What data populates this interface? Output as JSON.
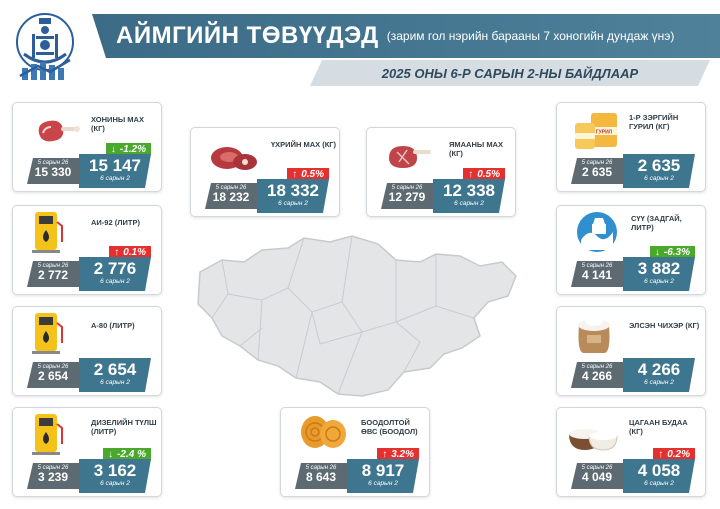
{
  "header": {
    "title": "АЙМГИЙН ТӨВҮҮДЭД",
    "subtitle": "(зарим гол нэрийн барааны 7 хоногийн дундаж үнэ)",
    "date_label": "2025 ОНЫ 6-Р САРЫН 2-НЫ БАЙДЛААР"
  },
  "colors": {
    "banner": "#3b6b86",
    "current_box": "#3e7690",
    "previous_box": "#5d6a72",
    "increase": "#e53030",
    "decrease": "#4aa82c"
  },
  "chart_data": {
    "type": "table",
    "columns": [
      "product",
      "previous",
      "current",
      "change_pct"
    ],
    "prev_date_label": "5 сарын 26",
    "cur_date_label": "6 сарын 2",
    "items": [
      {
        "name": "ХОНИНЫ МАХ (КГ)",
        "prev": "15 330",
        "cur": "15 147",
        "change": "-1.2%",
        "direction": "down",
        "icon": "mutton-icon"
      },
      {
        "name": "ҮХРИЙН МАХ (КГ)",
        "prev": "18 232",
        "cur": "18 332",
        "change": "0.5%",
        "direction": "up",
        "icon": "beef-icon"
      },
      {
        "name": "ЯМААНЫ МАХ (КГ)",
        "prev": "12 279",
        "cur": "12 338",
        "change": "0.5%",
        "direction": "up",
        "icon": "goat-meat-icon"
      },
      {
        "name": "1-Р ЗЭРГИЙН ГУРИЛ (КГ)",
        "prev": "2 635",
        "cur": "2 635",
        "change": "",
        "direction": "none",
        "icon": "flour-icon"
      },
      {
        "name": "АИ-92 (ЛИТР)",
        "prev": "2 772",
        "cur": "2 776",
        "change": "0.1%",
        "direction": "up",
        "icon": "fuel-pump-icon"
      },
      {
        "name": "СҮҮ (ЗАДГАЙ, ЛИТР)",
        "prev": "4 141",
        "cur": "3 882",
        "change": "-6.3%",
        "direction": "down",
        "icon": "milk-icon"
      },
      {
        "name": "А-80 (ЛИТР)",
        "prev": "2 654",
        "cur": "2 654",
        "change": "",
        "direction": "none",
        "icon": "fuel-pump-icon"
      },
      {
        "name": "ЭЛСЭН ЧИХЭР (КГ)",
        "prev": "4 266",
        "cur": "4 266",
        "change": "",
        "direction": "none",
        "icon": "sugar-sack-icon"
      },
      {
        "name": "ДИЗЕЛИЙН ТҮЛШ (ЛИТР)",
        "prev": "3 239",
        "cur": "3 162",
        "change": "-2.4 %",
        "direction": "down",
        "icon": "fuel-pump-icon"
      },
      {
        "name": "БООДОЛТОЙ ӨВС (БООДОЛ)",
        "prev": "8 643",
        "cur": "8 917",
        "change": "3.2%",
        "direction": "up",
        "icon": "hay-bale-icon"
      },
      {
        "name": "ЦАГААН БУДАА (КГ)",
        "prev": "4 049",
        "cur": "4 058",
        "change": "0.2%",
        "direction": "up",
        "icon": "rice-icon"
      }
    ]
  }
}
